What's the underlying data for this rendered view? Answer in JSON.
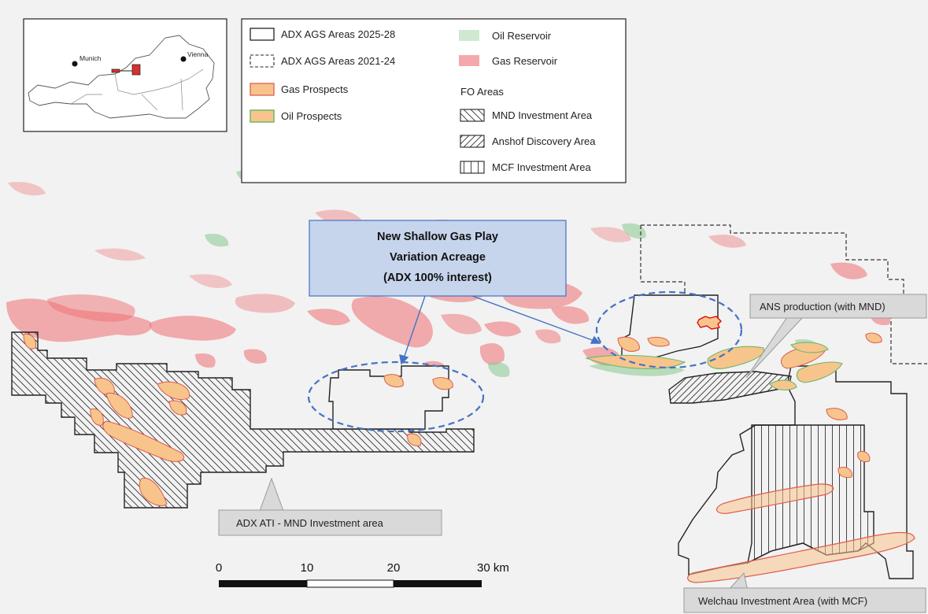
{
  "inset": {
    "city_west": "Munich",
    "city_east": "Vienna"
  },
  "legend": {
    "items_left": [
      {
        "label": "ADX AGS Areas 2025-28",
        "style": "solid-outline"
      },
      {
        "label": "ADX AGS Areas 2021-24",
        "style": "dashed-outline"
      },
      {
        "label": "Gas Prospects",
        "style": "orange-red-outline"
      },
      {
        "label": "Oil Prospects",
        "style": "orange-green-outline"
      }
    ],
    "items_right": [
      {
        "label": "Oil Reservoir",
        "style": "green-fill"
      },
      {
        "label": "Gas Reservoir",
        "style": "red-fill"
      }
    ],
    "fo_heading": "FO Areas",
    "fo_items": [
      {
        "label": "MND Investment Area",
        "style": "backslash-hatch"
      },
      {
        "label": "Anshof Discovery Area",
        "style": "slash-hatch"
      },
      {
        "label": "MCF Investment Area",
        "style": "vertical-hatch"
      }
    ]
  },
  "callouts": {
    "blue_box": [
      "New Shallow Gas Play",
      "Variation Acreage",
      "(ADX 100% interest)"
    ],
    "ans": "ANS production (with MND)",
    "ati": "ADX ATI - MND Investment area",
    "welchau": "Welchau Investment Area (with MCF)"
  },
  "scalebar": {
    "ticks": [
      "0",
      "10",
      "20",
      "30 km"
    ]
  },
  "colors": {
    "gas": "#ee6f72",
    "oil": "#86c98e",
    "prospect_fill": "#f7c58c",
    "callout_blue": "#c6d4ec",
    "callout_border": "#4472c4",
    "grey_callout": "#d9d9d9"
  }
}
